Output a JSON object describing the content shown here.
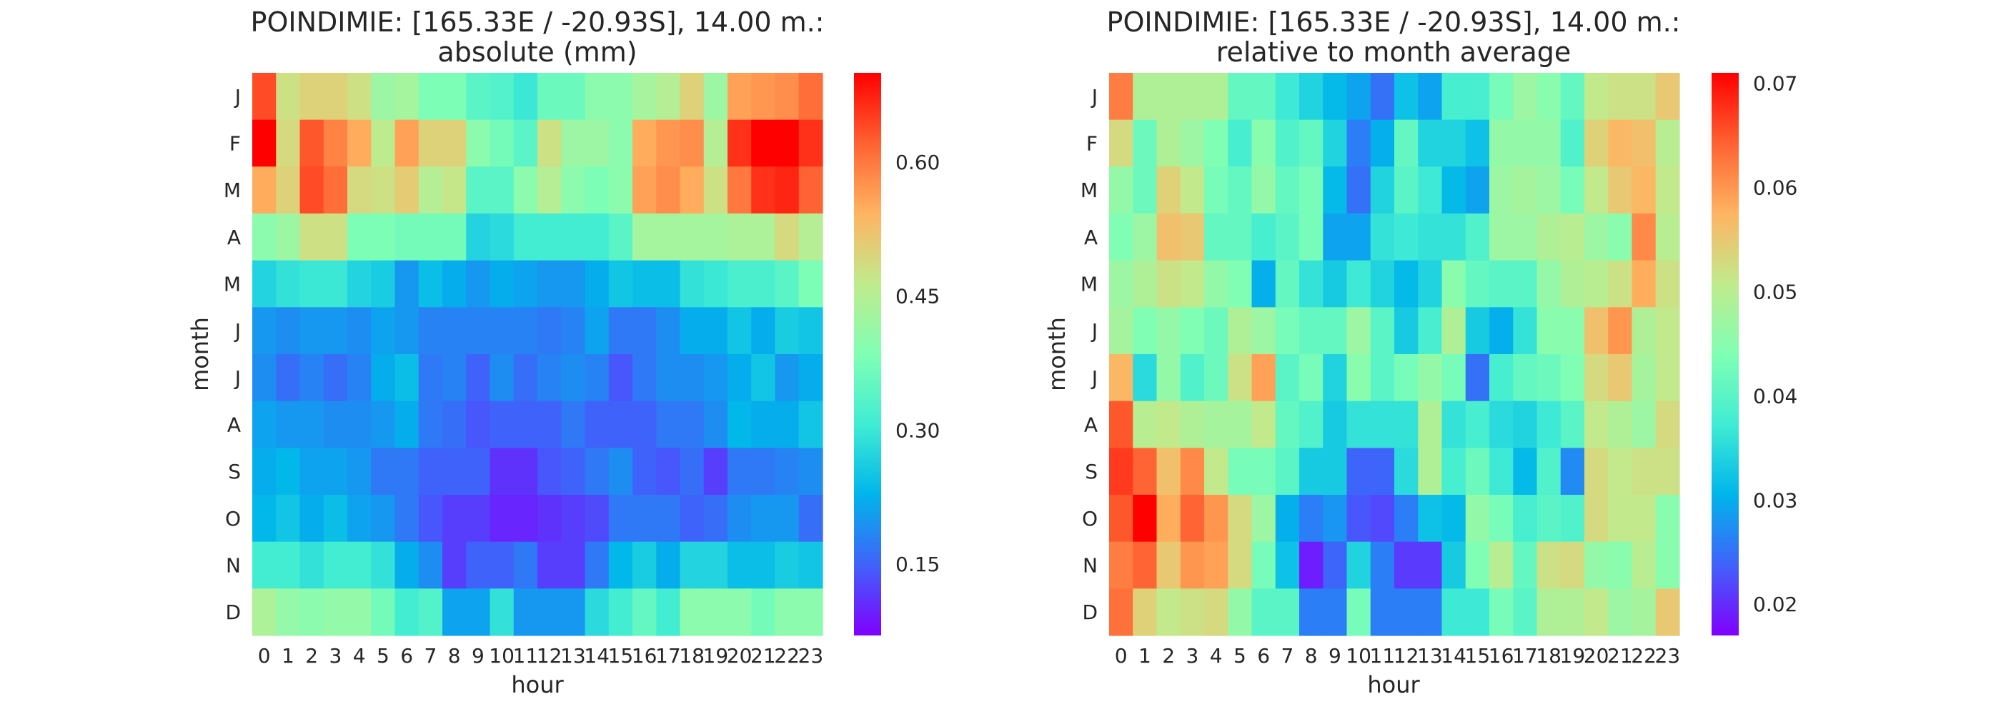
{
  "colormap": [
    "#8000ff",
    "#4062fa",
    "#00b5eb",
    "#40ecd4",
    "#80ffb4",
    "#c0eb8d",
    "#ffb462",
    "#ff6232",
    "#ff0000"
  ],
  "chart_data": [
    {
      "type": "heatmap",
      "title_line1": "POINDIMIE: [165.33E / -20.93S], 14.00 m.:",
      "title_line2": "absolute (mm)",
      "xlabel": "hour",
      "ylabel": "month",
      "x_categories": [
        "0",
        "1",
        "2",
        "3",
        "4",
        "5",
        "6",
        "7",
        "8",
        "9",
        "10",
        "11",
        "12",
        "13",
        "14",
        "15",
        "16",
        "17",
        "18",
        "19",
        "20",
        "21",
        "22",
        "23"
      ],
      "y_categories": [
        "J",
        "F",
        "M",
        "A",
        "M",
        "J",
        "J",
        "A",
        "S",
        "O",
        "N",
        "D"
      ],
      "vmin": 0.07,
      "vmax": 0.7,
      "colorbar_ticks": [
        "0.15",
        "0.30",
        "0.45",
        "0.60"
      ],
      "values": [
        [
          0.64,
          0.48,
          0.5,
          0.5,
          0.48,
          0.42,
          0.43,
          0.38,
          0.38,
          0.34,
          0.33,
          0.3,
          0.36,
          0.36,
          0.4,
          0.4,
          0.43,
          0.45,
          0.5,
          0.42,
          0.56,
          0.57,
          0.58,
          0.61
        ],
        [
          0.7,
          0.49,
          0.63,
          0.59,
          0.55,
          0.46,
          0.56,
          0.5,
          0.5,
          0.4,
          0.37,
          0.34,
          0.48,
          0.42,
          0.42,
          0.4,
          0.55,
          0.57,
          0.58,
          0.45,
          0.66,
          0.7,
          0.7,
          0.66
        ],
        [
          0.55,
          0.5,
          0.64,
          0.61,
          0.49,
          0.48,
          0.51,
          0.45,
          0.47,
          0.34,
          0.34,
          0.4,
          0.45,
          0.4,
          0.38,
          0.4,
          0.56,
          0.58,
          0.55,
          0.48,
          0.6,
          0.66,
          0.67,
          0.62
        ],
        [
          0.4,
          0.42,
          0.48,
          0.48,
          0.38,
          0.38,
          0.37,
          0.37,
          0.37,
          0.27,
          0.28,
          0.31,
          0.31,
          0.31,
          0.31,
          0.34,
          0.43,
          0.43,
          0.43,
          0.43,
          0.44,
          0.44,
          0.49,
          0.45
        ],
        [
          0.27,
          0.29,
          0.3,
          0.3,
          0.27,
          0.26,
          0.2,
          0.24,
          0.22,
          0.2,
          0.22,
          0.21,
          0.2,
          0.2,
          0.22,
          0.25,
          0.24,
          0.24,
          0.29,
          0.3,
          0.32,
          0.32,
          0.34,
          0.38
        ],
        [
          0.2,
          0.19,
          0.2,
          0.2,
          0.19,
          0.21,
          0.2,
          0.18,
          0.18,
          0.18,
          0.18,
          0.18,
          0.17,
          0.18,
          0.21,
          0.17,
          0.17,
          0.19,
          0.22,
          0.22,
          0.25,
          0.22,
          0.26,
          0.25
        ],
        [
          0.19,
          0.16,
          0.18,
          0.16,
          0.18,
          0.22,
          0.24,
          0.17,
          0.18,
          0.15,
          0.19,
          0.16,
          0.18,
          0.19,
          0.18,
          0.14,
          0.17,
          0.19,
          0.19,
          0.2,
          0.22,
          0.25,
          0.2,
          0.22
        ],
        [
          0.21,
          0.2,
          0.2,
          0.19,
          0.19,
          0.2,
          0.22,
          0.17,
          0.16,
          0.14,
          0.15,
          0.15,
          0.15,
          0.17,
          0.15,
          0.15,
          0.15,
          0.17,
          0.17,
          0.19,
          0.23,
          0.22,
          0.22,
          0.25
        ],
        [
          0.22,
          0.23,
          0.21,
          0.21,
          0.2,
          0.17,
          0.17,
          0.15,
          0.15,
          0.15,
          0.11,
          0.11,
          0.14,
          0.15,
          0.17,
          0.19,
          0.15,
          0.14,
          0.16,
          0.12,
          0.17,
          0.17,
          0.18,
          0.19
        ],
        [
          0.23,
          0.25,
          0.22,
          0.24,
          0.21,
          0.2,
          0.17,
          0.14,
          0.12,
          0.12,
          0.1,
          0.1,
          0.11,
          0.12,
          0.13,
          0.17,
          0.17,
          0.17,
          0.15,
          0.16,
          0.19,
          0.2,
          0.2,
          0.16
        ],
        [
          0.31,
          0.31,
          0.29,
          0.31,
          0.31,
          0.29,
          0.22,
          0.19,
          0.12,
          0.15,
          0.15,
          0.17,
          0.12,
          0.12,
          0.17,
          0.23,
          0.26,
          0.22,
          0.27,
          0.27,
          0.24,
          0.24,
          0.26,
          0.25
        ],
        [
          0.44,
          0.41,
          0.4,
          0.41,
          0.41,
          0.37,
          0.31,
          0.33,
          0.21,
          0.21,
          0.29,
          0.2,
          0.2,
          0.2,
          0.28,
          0.31,
          0.35,
          0.31,
          0.4,
          0.4,
          0.4,
          0.37,
          0.4,
          0.4
        ]
      ]
    },
    {
      "type": "heatmap",
      "title_line1": "POINDIMIE: [165.33E / -20.93S], 14.00 m.:",
      "title_line2": "relative to month average",
      "xlabel": "hour",
      "ylabel": "month",
      "x_categories": [
        "0",
        "1",
        "2",
        "3",
        "4",
        "5",
        "6",
        "7",
        "8",
        "9",
        "10",
        "11",
        "12",
        "13",
        "14",
        "15",
        "16",
        "17",
        "18",
        "19",
        "20",
        "21",
        "22",
        "23"
      ],
      "y_categories": [
        "J",
        "F",
        "M",
        "A",
        "M",
        "J",
        "J",
        "A",
        "S",
        "O",
        "N",
        "D"
      ],
      "vmin": 0.017,
      "vmax": 0.071,
      "colorbar_ticks": [
        "0.02",
        "0.03",
        "0.04",
        "0.05",
        "0.06",
        "0.07"
      ],
      "values": [
        [
          0.062,
          0.049,
          0.049,
          0.049,
          0.049,
          0.041,
          0.041,
          0.037,
          0.034,
          0.031,
          0.029,
          0.025,
          0.032,
          0.029,
          0.038,
          0.038,
          0.043,
          0.047,
          0.045,
          0.041,
          0.051,
          0.052,
          0.052,
          0.055
        ],
        [
          0.053,
          0.042,
          0.049,
          0.047,
          0.044,
          0.038,
          0.045,
          0.039,
          0.041,
          0.034,
          0.026,
          0.03,
          0.041,
          0.034,
          0.034,
          0.032,
          0.046,
          0.046,
          0.046,
          0.039,
          0.054,
          0.057,
          0.056,
          0.05
        ],
        [
          0.046,
          0.042,
          0.054,
          0.051,
          0.043,
          0.041,
          0.046,
          0.041,
          0.043,
          0.031,
          0.025,
          0.034,
          0.04,
          0.037,
          0.031,
          0.029,
          0.047,
          0.048,
          0.047,
          0.043,
          0.051,
          0.055,
          0.057,
          0.051
        ],
        [
          0.044,
          0.047,
          0.056,
          0.055,
          0.041,
          0.041,
          0.038,
          0.04,
          0.043,
          0.029,
          0.029,
          0.036,
          0.037,
          0.036,
          0.036,
          0.039,
          0.047,
          0.047,
          0.049,
          0.05,
          0.047,
          0.045,
          0.061,
          0.05
        ],
        [
          0.047,
          0.049,
          0.052,
          0.051,
          0.046,
          0.044,
          0.03,
          0.041,
          0.036,
          0.033,
          0.037,
          0.034,
          0.031,
          0.034,
          0.045,
          0.041,
          0.04,
          0.04,
          0.046,
          0.049,
          0.05,
          0.052,
          0.058,
          0.052
        ],
        [
          0.048,
          0.044,
          0.046,
          0.044,
          0.042,
          0.049,
          0.047,
          0.043,
          0.041,
          0.041,
          0.047,
          0.04,
          0.033,
          0.038,
          0.049,
          0.033,
          0.03,
          0.036,
          0.045,
          0.045,
          0.056,
          0.06,
          0.049,
          0.051
        ],
        [
          0.057,
          0.035,
          0.046,
          0.039,
          0.042,
          0.052,
          0.059,
          0.04,
          0.043,
          0.034,
          0.045,
          0.04,
          0.043,
          0.046,
          0.043,
          0.025,
          0.038,
          0.041,
          0.042,
          0.044,
          0.053,
          0.055,
          0.048,
          0.051
        ],
        [
          0.065,
          0.05,
          0.051,
          0.049,
          0.048,
          0.048,
          0.051,
          0.041,
          0.039,
          0.033,
          0.036,
          0.036,
          0.036,
          0.049,
          0.036,
          0.038,
          0.035,
          0.034,
          0.037,
          0.04,
          0.051,
          0.049,
          0.047,
          0.053
        ],
        [
          0.067,
          0.064,
          0.056,
          0.061,
          0.051,
          0.043,
          0.043,
          0.04,
          0.033,
          0.033,
          0.024,
          0.024,
          0.035,
          0.049,
          0.038,
          0.042,
          0.037,
          0.031,
          0.039,
          0.027,
          0.053,
          0.051,
          0.052,
          0.052
        ],
        [
          0.065,
          0.071,
          0.058,
          0.064,
          0.06,
          0.053,
          0.047,
          0.03,
          0.026,
          0.028,
          0.023,
          0.022,
          0.026,
          0.032,
          0.031,
          0.046,
          0.043,
          0.038,
          0.04,
          0.039,
          0.053,
          0.051,
          0.051,
          0.045
        ],
        [
          0.062,
          0.064,
          0.055,
          0.06,
          0.059,
          0.053,
          0.043,
          0.032,
          0.019,
          0.024,
          0.034,
          0.026,
          0.021,
          0.021,
          0.033,
          0.044,
          0.05,
          0.041,
          0.052,
          0.053,
          0.046,
          0.045,
          0.05,
          0.045
        ],
        [
          0.063,
          0.054,
          0.051,
          0.052,
          0.053,
          0.046,
          0.04,
          0.04,
          0.026,
          0.026,
          0.043,
          0.026,
          0.026,
          0.026,
          0.037,
          0.037,
          0.043,
          0.04,
          0.049,
          0.049,
          0.051,
          0.047,
          0.048,
          0.055
        ]
      ]
    }
  ]
}
